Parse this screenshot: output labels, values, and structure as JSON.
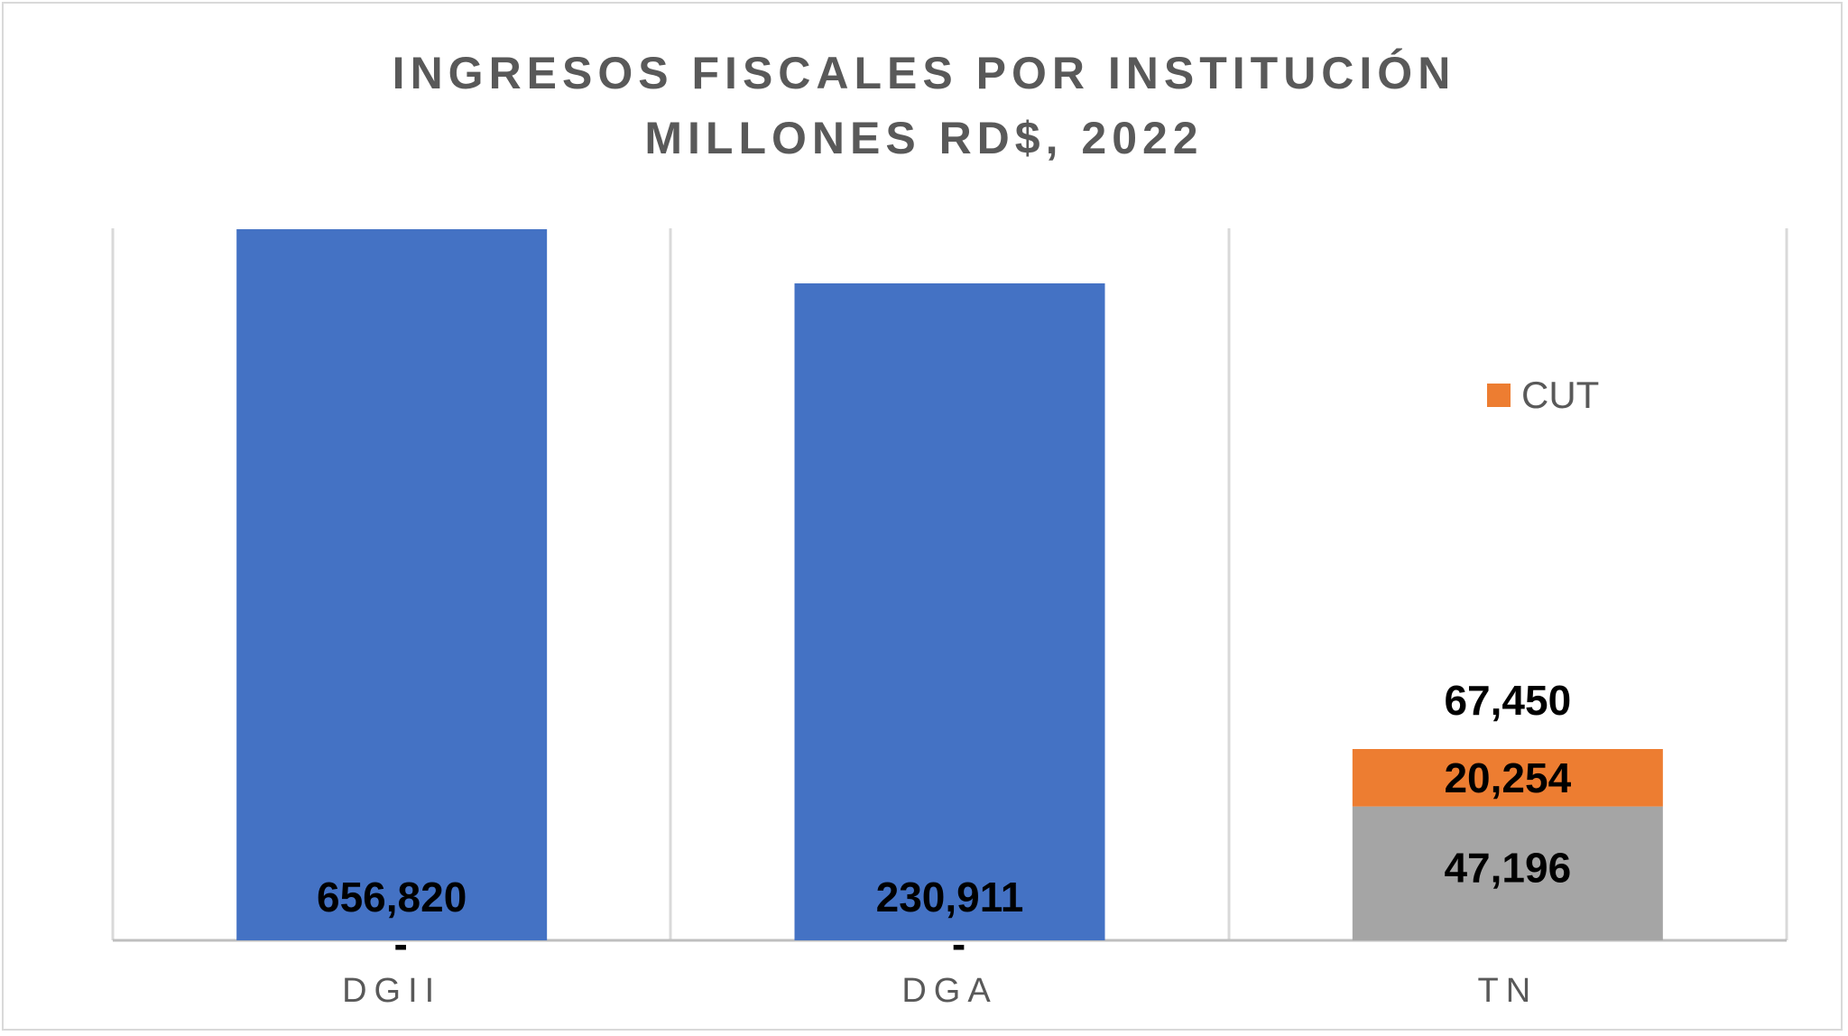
{
  "chart_data": {
    "type": "bar",
    "title_lines": [
      "INGRESOS FISCALES POR INSTITUCIÓN",
      "MILLONES RD$, 2022"
    ],
    "categories": [
      "DGII",
      "DGA",
      "TN"
    ],
    "series": [
      {
        "values": [
          656820,
          230911,
          47196
        ],
        "color": "#4472c4",
        "labels": [
          "656,820",
          "230,911",
          "47,196"
        ]
      },
      {
        "name": "CUT",
        "values": [
          0,
          0,
          20254
        ],
        "color": "#ed7d31",
        "labels": [
          "-",
          "-",
          "20,254"
        ]
      }
    ],
    "totals": [
      null,
      null,
      67450
    ],
    "total_labels": [
      "",
      "",
      "67,450"
    ],
    "tn_first_segment_color": "#a5a5a5",
    "y_axis_break": true,
    "gridlines": "vertical",
    "legend_position": "right"
  }
}
